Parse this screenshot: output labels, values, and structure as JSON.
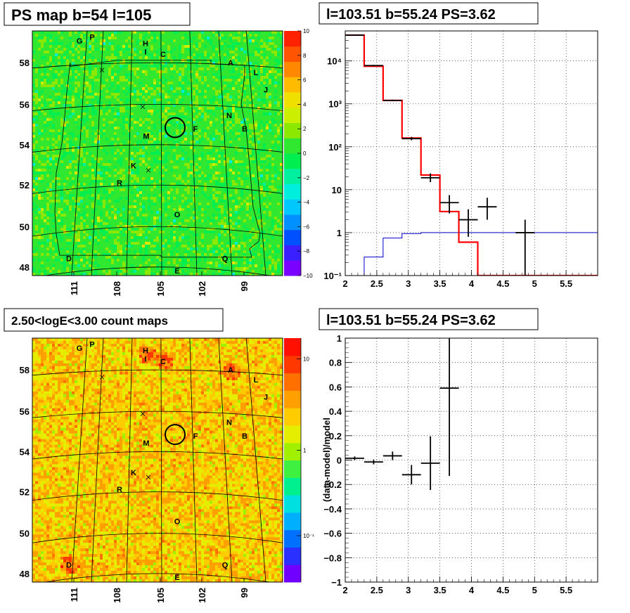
{
  "colors": {
    "hist_data": "#000000",
    "model": "#ff0000",
    "model_stroke": "#aa0000",
    "background_model": "#0000cc",
    "circle": "#000000"
  },
  "maps": {
    "ps_map": {
      "title": "PS map b=54 l=105",
      "type": "heatmap",
      "palette_ticks": [
        "10",
        "8",
        "6",
        "4",
        "2",
        "0",
        "−2",
        "−4",
        "−6",
        "−8",
        "−10"
      ],
      "palette_range": [
        -10,
        10
      ],
      "b_ticks": [
        "58",
        "56",
        "54",
        "52",
        "50",
        "48"
      ],
      "l_ticks": [
        "111",
        "108",
        "105",
        "102",
        "99"
      ],
      "sources": [
        "G",
        "P",
        "H",
        "I",
        "C",
        "A",
        "L",
        "J",
        "N",
        "F",
        "B",
        "M",
        "K",
        "R",
        "O",
        "D",
        "Q",
        "E"
      ]
    },
    "count_map": {
      "title": "2.50<logE<3.00 count maps",
      "type": "heatmap",
      "scale": "log",
      "palette_ticks": [
        "10",
        "1",
        "10⁻¹"
      ],
      "b_ticks": [
        "58",
        "56",
        "54",
        "52",
        "50",
        "48"
      ],
      "l_ticks": [
        "111",
        "108",
        "105",
        "102",
        "99"
      ],
      "sources": [
        "G",
        "P",
        "H",
        "I",
        "C",
        "A",
        "L",
        "J",
        "N",
        "F",
        "B",
        "M",
        "K",
        "R",
        "O",
        "D",
        "Q",
        "E"
      ]
    }
  },
  "chart_data": [
    {
      "type": "line",
      "title": "l=103.51 b=55.24 PS=3.62",
      "yscale": "log",
      "xlim": [
        2,
        6
      ],
      "ylim": [
        0.1,
        50000
      ],
      "x_tick_labels": [
        "2",
        "2.5",
        "3",
        "3.5",
        "4",
        "4.5",
        "5",
        "5.5"
      ],
      "y_tick_labels": [
        "10⁻¹",
        "1",
        "10",
        "10²",
        "10³",
        "10⁴"
      ],
      "grid": true,
      "bin_edges": [
        2.0,
        2.3,
        2.6,
        2.9,
        3.2,
        3.5,
        3.8,
        4.1,
        4.4,
        6.0
      ],
      "series": [
        {
          "values": [
            40000,
            7500,
            1200,
            160,
            22,
            3.1,
            0.6,
            0.1,
            0.1
          ]
        },
        {
          "values": [
            0.1,
            0.27,
            0.75,
            0.95,
            1.0,
            1.0,
            1.0,
            1.0,
            1.0
          ]
        }
      ],
      "points": [
        {
          "x": 2.15,
          "y": 40000,
          "xerr": 0.15,
          "ylo": 39000,
          "yhi": 41000
        },
        {
          "x": 2.45,
          "y": 7800,
          "xerr": 0.15,
          "ylo": 7500,
          "yhi": 8100
        },
        {
          "x": 2.75,
          "y": 1200,
          "xerr": 0.15,
          "ylo": 1150,
          "yhi": 1260
        },
        {
          "x": 3.05,
          "y": 155,
          "xerr": 0.15,
          "ylo": 142,
          "yhi": 170
        },
        {
          "x": 3.35,
          "y": 19,
          "xerr": 0.15,
          "ylo": 15,
          "yhi": 24
        },
        {
          "x": 3.65,
          "y": 5,
          "xerr": 0.15,
          "ylo": 2.8,
          "yhi": 7.5
        },
        {
          "x": 3.95,
          "y": 2,
          "xerr": 0.15,
          "ylo": 0.8,
          "yhi": 3.5
        },
        {
          "x": 4.25,
          "y": 4,
          "xerr": 0.15,
          "ylo": 2,
          "yhi": 6.5
        },
        {
          "x": 4.85,
          "y": 1,
          "xerr": 0.15,
          "ylo": 0.1,
          "yhi": 2
        }
      ]
    },
    {
      "type": "scatter",
      "title": "l=103.51 b=55.24 PS=3.62",
      "ylabel": "(data-model)/model",
      "xlim": [
        2,
        6
      ],
      "ylim": [
        -1,
        1
      ],
      "x_tick_labels": [
        "2",
        "2.5",
        "3",
        "3.5",
        "4",
        "4.5",
        "5",
        "5.5"
      ],
      "y_tick_labels": [
        "1",
        "0.8",
        "0.6",
        "0.4",
        "0.2",
        "0",
        "−0.2",
        "−0.4",
        "−0.6",
        "−0.8",
        "−1"
      ],
      "grid": true,
      "points": [
        {
          "x": 2.15,
          "y": 0.015,
          "xerr": 0.15,
          "yerr": 0.015
        },
        {
          "x": 2.45,
          "y": -0.015,
          "xerr": 0.15,
          "yerr": 0.02
        },
        {
          "x": 2.75,
          "y": 0.035,
          "xerr": 0.15,
          "yerr": 0.035
        },
        {
          "x": 3.05,
          "y": -0.12,
          "xerr": 0.15,
          "yerr": 0.08
        },
        {
          "x": 3.35,
          "y": -0.025,
          "xerr": 0.15,
          "yerr": 0.22
        },
        {
          "x": 3.65,
          "y": 0.59,
          "xerr": 0.15,
          "yerr": 0.72
        }
      ]
    }
  ]
}
